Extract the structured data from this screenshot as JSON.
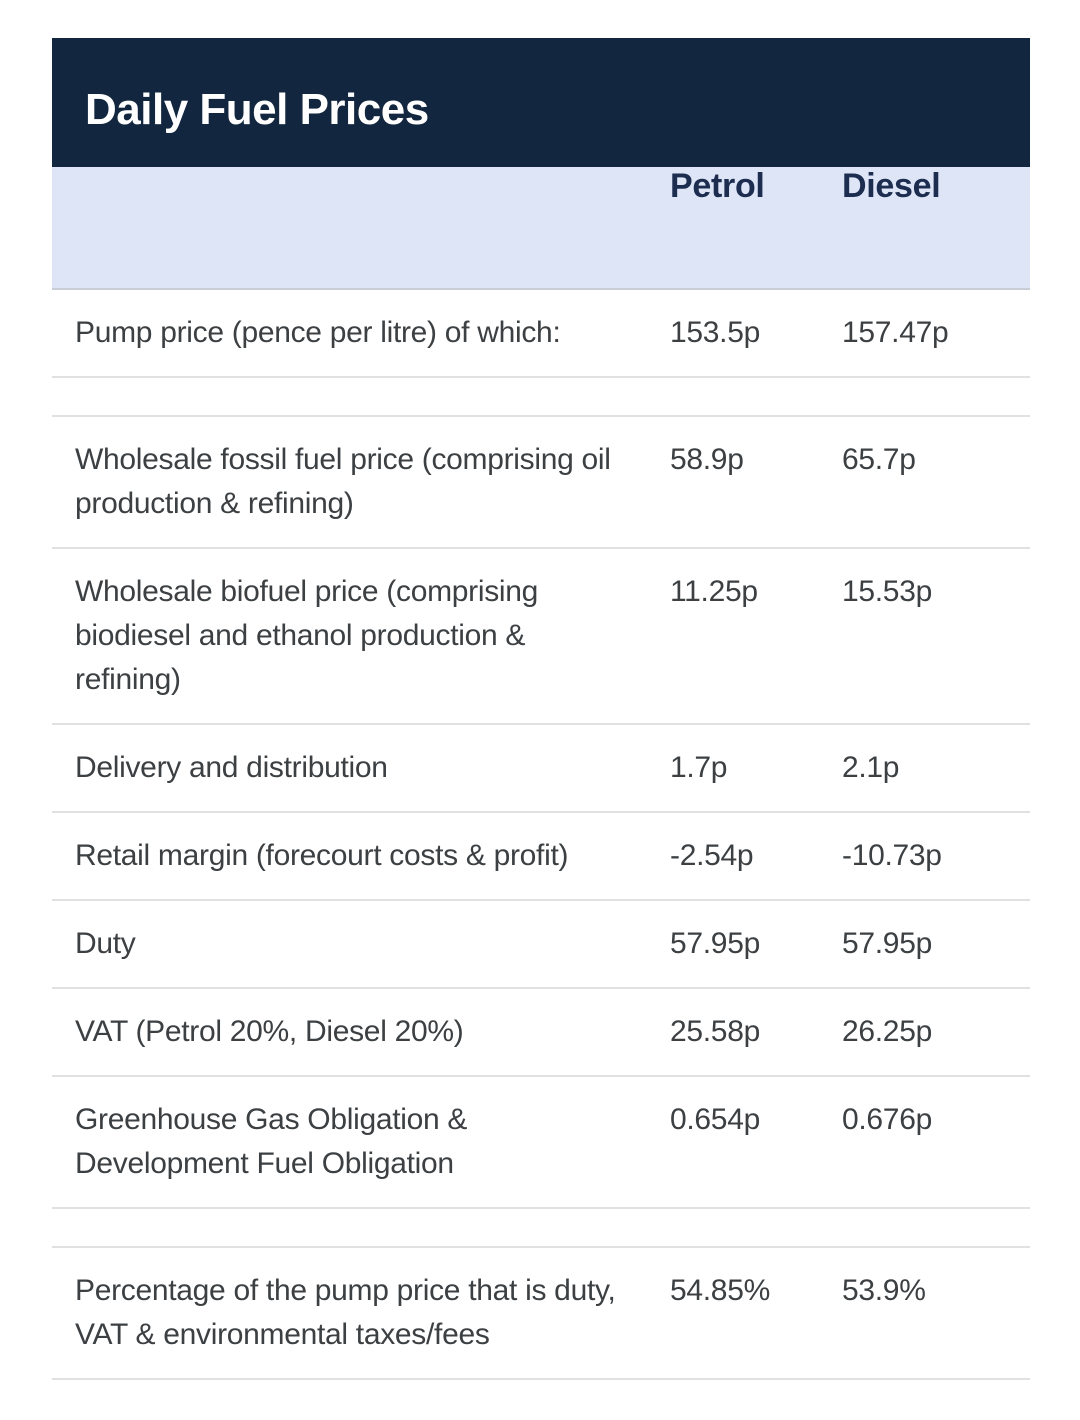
{
  "title": "Daily Fuel Prices",
  "chart_data": {
    "type": "table",
    "title": "Daily Fuel Prices",
    "columns": [
      "Petrol",
      "Diesel"
    ],
    "rows": [
      {
        "label": "Pump price (pence per litre) of which:",
        "petrol": "153.5p",
        "diesel": "157.47p",
        "spacer_after": true
      },
      {
        "label": "Wholesale fossil fuel price (comprising oil production & refining)",
        "petrol": "58.9p",
        "diesel": "65.7p",
        "spacer_after": false
      },
      {
        "label": "Wholesale biofuel price (comprising biodiesel and ethanol production & refining)",
        "petrol": "11.25p",
        "diesel": "15.53p",
        "spacer_after": false
      },
      {
        "label": "Delivery and distribution",
        "petrol": "1.7p",
        "diesel": "2.1p",
        "spacer_after": false
      },
      {
        "label": "Retail margin (forecourt costs & profit)",
        "petrol": "-2.54p",
        "diesel": "-10.73p",
        "spacer_after": false
      },
      {
        "label": "Duty",
        "petrol": "57.95p",
        "diesel": "57.95p",
        "spacer_after": false
      },
      {
        "label": "VAT (Petrol 20%, Diesel 20%)",
        "petrol": "25.58p",
        "diesel": "26.25p",
        "spacer_after": false
      },
      {
        "label": "Greenhouse Gas Obligation & Development Fuel Obligation",
        "petrol": "0.654p",
        "diesel": "0.676p",
        "spacer_after": true
      },
      {
        "label": "Percentage of the pump price that is duty, VAT & environmental taxes/fees",
        "petrol": "54.85%",
        "diesel": "53.9%",
        "spacer_after": false
      }
    ],
    "layout": {
      "legend": "none",
      "grid": "horizontal-dividers"
    }
  },
  "colors": {
    "header_bg": "#13263f",
    "header_text": "#ffffff",
    "column_header_bg": "#dee5f6",
    "column_header_text": "#1c2d50",
    "body_text": "#3c4043",
    "divider": "#e1e1e1",
    "page_bg": "#ffffff"
  }
}
